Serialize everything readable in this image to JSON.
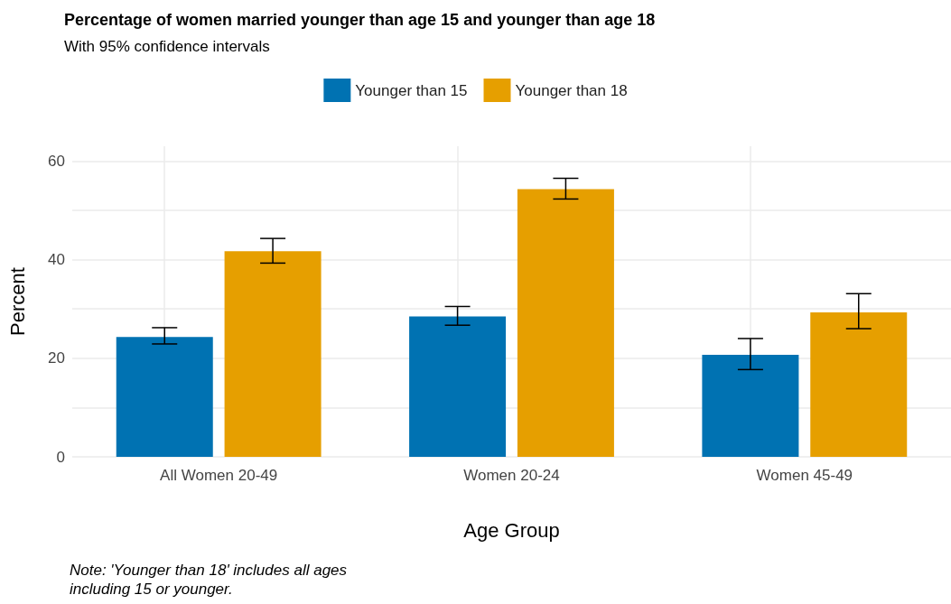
{
  "chart_data": {
    "type": "bar",
    "title": "Percentage of women married younger than age 15 and younger than age 18",
    "subtitle": "With 95% confidence intervals",
    "xlabel": "Age Group",
    "ylabel": "Percent",
    "categories": [
      "All Women 20-49",
      "Women 20-24",
      "Women 45-49"
    ],
    "series": [
      {
        "name": "Younger than 15",
        "color": "#0072b2",
        "values": [
          24.3,
          28.5,
          20.7
        ],
        "errors": [
          [
            22.9,
            26.2
          ],
          [
            26.7,
            30.5
          ],
          [
            17.7,
            24.0
          ]
        ]
      },
      {
        "name": "Younger than 18",
        "color": "#e69f00",
        "values": [
          41.7,
          54.3,
          29.3
        ],
        "errors": [
          [
            39.3,
            44.3
          ],
          [
            52.3,
            56.5
          ],
          [
            26.0,
            33.1
          ]
        ]
      }
    ],
    "ylim": [
      0,
      63
    ],
    "yticks": [
      0,
      {
        "value": 10,
        "label": null
      },
      20,
      {
        "value": 30,
        "label": null
      },
      40,
      {
        "value": 50,
        "label": null
      },
      60
    ],
    "grid": true,
    "legend": "top",
    "annotations": [
      "Note: 'Younger than 18' includes all ages\nincluding 15 or younger."
    ]
  }
}
